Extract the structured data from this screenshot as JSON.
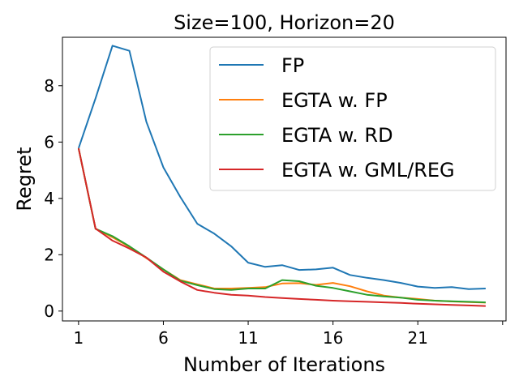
{
  "chart_data": {
    "type": "line",
    "title": "Size=100, Horizon=20",
    "xlabel": "Number of Iterations",
    "ylabel": "Regret",
    "xlim": [
      0.05,
      26.2
    ],
    "ylim": [
      -0.35,
      9.72
    ],
    "xticks": [
      1,
      6,
      11,
      16,
      21
    ],
    "xtick_labels": [
      "1",
      "6",
      "11",
      "16",
      "21"
    ],
    "yticks": [
      0,
      2,
      4,
      6,
      8
    ],
    "ytick_labels": [
      "0",
      "2",
      "4",
      "6",
      "8"
    ],
    "grid": false,
    "legend_position": "upper right",
    "x": [
      1,
      2,
      3,
      4,
      5,
      6,
      7,
      8,
      9,
      10,
      11,
      12,
      13,
      14,
      15,
      16,
      17,
      18,
      19,
      20,
      21,
      22,
      23,
      24,
      25
    ],
    "series": [
      {
        "name": "FP",
        "color": "#1f77b4",
        "values": [
          5.78,
          7.55,
          9.42,
          9.24,
          6.72,
          5.1,
          4.05,
          3.1,
          2.75,
          2.3,
          1.72,
          1.57,
          1.63,
          1.46,
          1.48,
          1.54,
          1.28,
          1.18,
          1.1,
          1.0,
          0.87,
          0.82,
          0.85,
          0.78,
          0.8
        ]
      },
      {
        "name": "EGTA w. FP",
        "color": "#ff7f0e",
        "values": [
          5.78,
          2.92,
          2.62,
          2.28,
          1.88,
          1.48,
          1.1,
          0.95,
          0.8,
          0.8,
          0.82,
          0.85,
          0.98,
          0.99,
          0.93,
          1.0,
          0.88,
          0.7,
          0.55,
          0.48,
          0.43,
          0.37,
          0.34,
          0.32,
          0.3
        ]
      },
      {
        "name": "EGTA w. RD",
        "color": "#2ca02c",
        "values": [
          5.78,
          2.92,
          2.66,
          2.3,
          1.9,
          1.48,
          1.08,
          0.92,
          0.78,
          0.75,
          0.8,
          0.8,
          1.1,
          1.06,
          0.9,
          0.82,
          0.7,
          0.58,
          0.52,
          0.48,
          0.4,
          0.37,
          0.35,
          0.33,
          0.31
        ]
      },
      {
        "name": "EGTA w. GML/REG",
        "color": "#d62728",
        "values": [
          5.78,
          2.93,
          2.5,
          2.22,
          1.9,
          1.4,
          1.05,
          0.75,
          0.65,
          0.58,
          0.55,
          0.5,
          0.46,
          0.43,
          0.4,
          0.37,
          0.35,
          0.33,
          0.31,
          0.29,
          0.26,
          0.24,
          0.22,
          0.2,
          0.18
        ]
      }
    ]
  }
}
